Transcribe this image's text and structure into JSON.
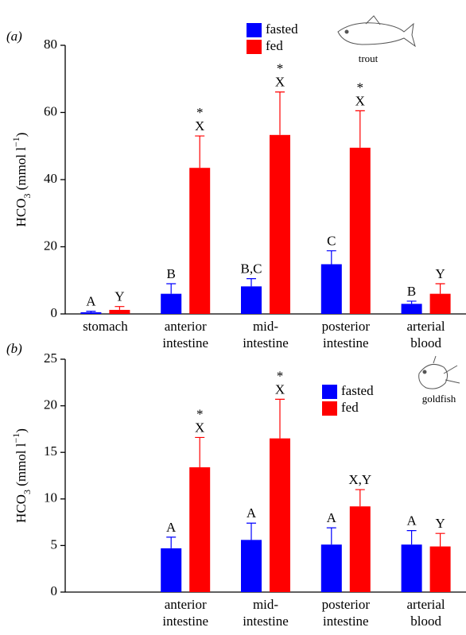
{
  "chart_data": [
    {
      "type": "bar",
      "panel": "(a)",
      "animal": "trout",
      "ylabel": [
        "HCO",
        "3",
        " (mmol l",
        "−1",
        ")"
      ],
      "categories": [
        "stomach",
        "anterior\nintestine",
        "mid-\nintestine",
        "posterior\nintestine",
        "arterial\nblood"
      ],
      "series": [
        {
          "name": "fasted",
          "color": "#0000ff",
          "values": [
            0.5,
            6,
            8.2,
            14.8,
            3
          ],
          "errors": [
            0.3,
            3,
            2.3,
            4,
            0.8
          ],
          "annotations": [
            "A",
            "B",
            "B,C",
            "C",
            "B"
          ],
          "stars": [
            null,
            null,
            null,
            null,
            null
          ]
        },
        {
          "name": "fed",
          "color": "#ff0000",
          "values": [
            1.2,
            43.5,
            53.3,
            49.5,
            6
          ],
          "errors": [
            1,
            9.5,
            12.8,
            11,
            3
          ],
          "annotations": [
            "Y",
            "X",
            "X",
            "X",
            "Y"
          ],
          "stars": [
            null,
            "*",
            "*",
            "*",
            null
          ]
        }
      ],
      "ylim": [
        0,
        80
      ],
      "yticks": [
        0,
        20,
        40,
        60,
        80
      ]
    },
    {
      "type": "bar",
      "panel": "(b)",
      "animal": "goldfish",
      "ylabel": [
        "HCO",
        "3",
        " (mmol l",
        "−1",
        ")"
      ],
      "categories": [
        null,
        "anterior\nintestine",
        "mid-\nintestine",
        "posterior\nintestine",
        "arterial\nblood"
      ],
      "series": [
        {
          "name": "fasted",
          "color": "#0000ff",
          "values": [
            null,
            4.7,
            5.6,
            5.1,
            5.1
          ],
          "errors": [
            null,
            1.2,
            1.8,
            1.8,
            1.5
          ],
          "annotations": [
            null,
            "A",
            "A",
            "A",
            "A"
          ],
          "stars": [
            null,
            null,
            null,
            null,
            null
          ]
        },
        {
          "name": "fed",
          "color": "#ff0000",
          "values": [
            null,
            13.4,
            16.5,
            9.2,
            4.9
          ],
          "errors": [
            null,
            3.2,
            4.2,
            1.8,
            1.4
          ],
          "annotations": [
            null,
            "X",
            "X",
            "X,Y",
            "Y"
          ],
          "stars": [
            null,
            "*",
            "*",
            null,
            null
          ]
        }
      ],
      "ylim": [
        0,
        25
      ],
      "yticks": [
        0,
        5,
        10,
        15,
        20,
        25
      ]
    }
  ]
}
